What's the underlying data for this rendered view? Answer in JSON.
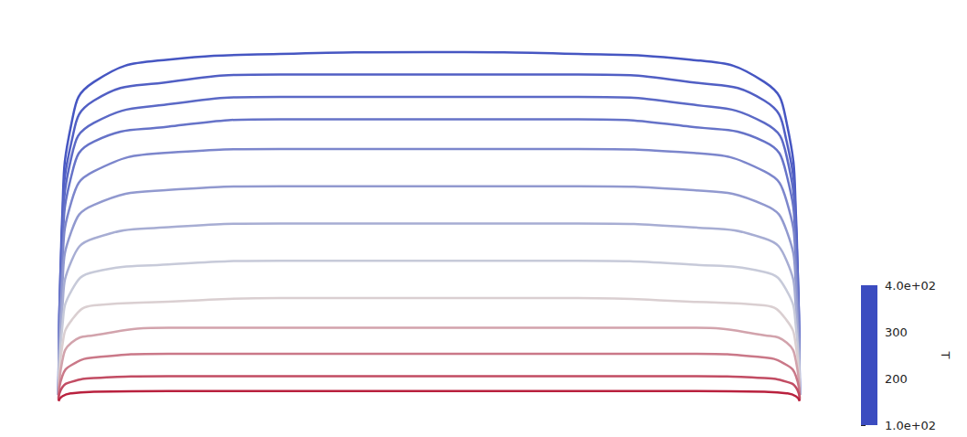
{
  "chart_data": {
    "type": "contour",
    "xlim": [
      0,
      2
    ],
    "ylim": [
      0,
      0.95
    ],
    "tick_labels": false,
    "x": [
      0.005,
      0.015,
      0.04,
      0.1,
      0.3,
      0.6,
      1.0,
      1.4,
      1.7,
      1.9,
      1.96,
      1.985,
      1.995
    ],
    "contours": [
      {
        "level": 110,
        "y": [
          0.02,
          0.5,
          0.75,
          0.86,
          0.92,
          0.935,
          0.94,
          0.935,
          0.92,
          0.86,
          0.75,
          0.5,
          0.02
        ]
      },
      {
        "level": 120,
        "y": [
          0.02,
          0.47,
          0.7,
          0.81,
          0.86,
          0.88,
          0.88,
          0.88,
          0.86,
          0.81,
          0.7,
          0.47,
          0.02
        ]
      },
      {
        "level": 130,
        "y": [
          0.02,
          0.43,
          0.66,
          0.75,
          0.8,
          0.82,
          0.82,
          0.82,
          0.8,
          0.75,
          0.66,
          0.43,
          0.02
        ]
      },
      {
        "level": 140,
        "y": [
          0.02,
          0.4,
          0.61,
          0.7,
          0.74,
          0.76,
          0.76,
          0.76,
          0.74,
          0.7,
          0.61,
          0.4,
          0.02
        ]
      },
      {
        "level": 160,
        "y": [
          0.02,
          0.36,
          0.54,
          0.62,
          0.67,
          0.68,
          0.68,
          0.68,
          0.67,
          0.62,
          0.54,
          0.36,
          0.02
        ]
      },
      {
        "level": 180,
        "y": [
          0.02,
          0.31,
          0.46,
          0.53,
          0.57,
          0.58,
          0.58,
          0.58,
          0.57,
          0.53,
          0.46,
          0.31,
          0.02
        ]
      },
      {
        "level": 200,
        "y": [
          0.02,
          0.25,
          0.38,
          0.44,
          0.47,
          0.48,
          0.48,
          0.48,
          0.47,
          0.44,
          0.38,
          0.25,
          0.02
        ]
      },
      {
        "level": 230,
        "y": [
          0.02,
          0.2,
          0.3,
          0.35,
          0.37,
          0.38,
          0.38,
          0.38,
          0.37,
          0.35,
          0.3,
          0.2,
          0.02
        ]
      },
      {
        "level": 260,
        "y": [
          0.02,
          0.15,
          0.22,
          0.26,
          0.27,
          0.28,
          0.28,
          0.28,
          0.27,
          0.26,
          0.22,
          0.15,
          0.02
        ]
      },
      {
        "level": 290,
        "y": [
          0.01,
          0.11,
          0.16,
          0.18,
          0.2,
          0.2,
          0.2,
          0.2,
          0.2,
          0.18,
          0.16,
          0.11,
          0.01
        ]
      },
      {
        "level": 320,
        "y": [
          0.01,
          0.07,
          0.1,
          0.12,
          0.13,
          0.13,
          0.13,
          0.13,
          0.13,
          0.12,
          0.1,
          0.07,
          0.01
        ]
      },
      {
        "level": 350,
        "y": [
          0.005,
          0.04,
          0.055,
          0.065,
          0.07,
          0.07,
          0.07,
          0.07,
          0.07,
          0.065,
          0.055,
          0.04,
          0.005
        ]
      },
      {
        "level": 380,
        "y": [
          0.003,
          0.016,
          0.024,
          0.028,
          0.03,
          0.03,
          0.03,
          0.03,
          0.03,
          0.028,
          0.024,
          0.016,
          0.003
        ]
      }
    ],
    "colorbar": {
      "label": "T",
      "range": [
        100,
        400
      ],
      "ticks": [
        {
          "value": 400,
          "label": "4.0e+02"
        },
        300,
        200,
        {
          "value": 100,
          "label": "1.0e+02"
        }
      ],
      "colors": [
        "#3b4cc0",
        "#dddddd",
        "#b40426"
      ]
    }
  }
}
